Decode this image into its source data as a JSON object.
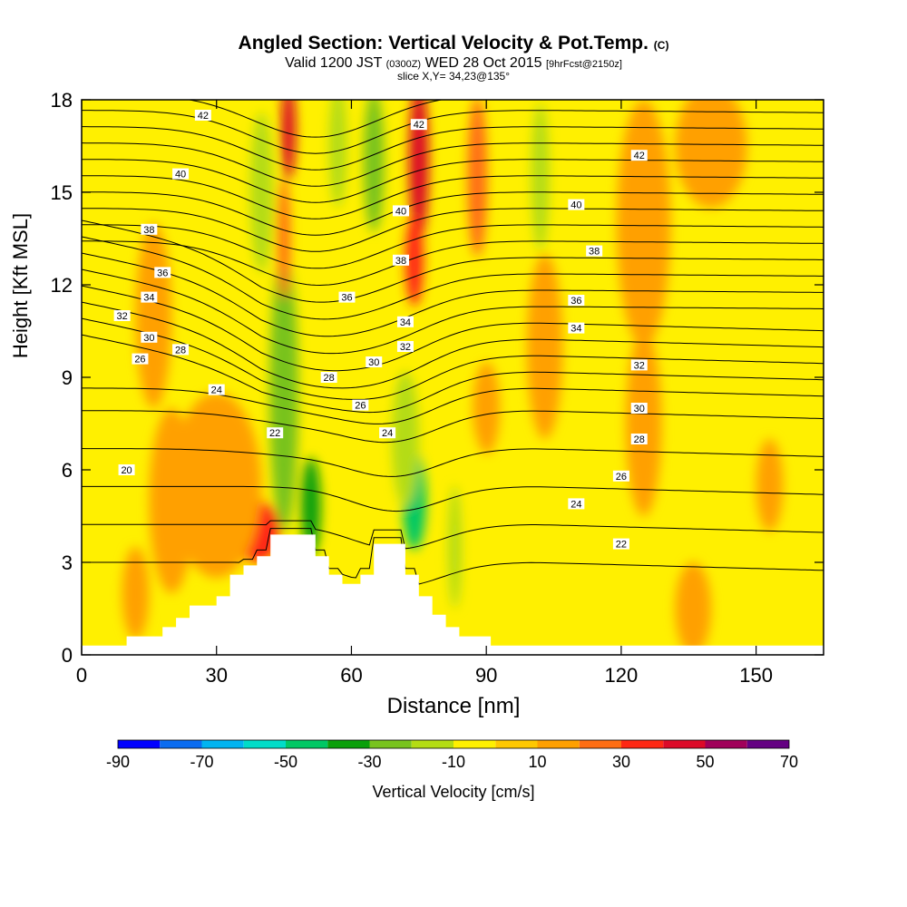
{
  "header": {
    "title_main": "Angled Section: Vertical Velocity & Pot.Temp.",
    "title_unit": "(C)",
    "valid_prefix": "Valid 1200 JST",
    "valid_utc": "(0300Z)",
    "valid_date": "WED 28 Oct 2015",
    "forecast": "[9hrFcst@2150z]",
    "slice": "slice X,Y= 34,23@135°"
  },
  "chart_data": {
    "type": "heatmap",
    "xlabel": "Distance [nm]",
    "ylabel": "Height [Kft MSL]",
    "xlim": [
      0,
      165
    ],
    "ylim": [
      0,
      18
    ],
    "x_ticks": [
      0,
      30,
      60,
      90,
      120,
      150
    ],
    "y_ticks": [
      0,
      3,
      6,
      9,
      12,
      15,
      18
    ],
    "colorbar": {
      "label": "Vertical Velocity [cm/s]",
      "tick_labels": [
        "-90",
        "-70",
        "-50",
        "-30",
        "-10",
        "10",
        "30",
        "50",
        "70"
      ],
      "colors": [
        "#0000ff",
        "#0a6cf0",
        "#00b4f0",
        "#00dcc8",
        "#00c864",
        "#0aa00a",
        "#78c31e",
        "#b4dc14",
        "#fff000",
        "#ffc800",
        "#ffa000",
        "#ff6e14",
        "#ff2814",
        "#dc0a28",
        "#a0005a",
        "#640082"
      ]
    },
    "terrain": [
      [
        0,
        0.3
      ],
      [
        10,
        0.3
      ],
      [
        10,
        0.6
      ],
      [
        18,
        0.6
      ],
      [
        18,
        0.9
      ],
      [
        21,
        0.9
      ],
      [
        21,
        1.2
      ],
      [
        24,
        1.2
      ],
      [
        24,
        1.6
      ],
      [
        30,
        1.6
      ],
      [
        30,
        1.9
      ],
      [
        33,
        1.9
      ],
      [
        33,
        2.6
      ],
      [
        36,
        2.6
      ],
      [
        36,
        2.9
      ],
      [
        39,
        2.9
      ],
      [
        39,
        3.2
      ],
      [
        42,
        3.2
      ],
      [
        42,
        3.9
      ],
      [
        52,
        3.9
      ],
      [
        52,
        3.2
      ],
      [
        55,
        3.2
      ],
      [
        55,
        2.6
      ],
      [
        58,
        2.6
      ],
      [
        58,
        2.3
      ],
      [
        62,
        2.3
      ],
      [
        62,
        2.6
      ],
      [
        65,
        2.6
      ],
      [
        65,
        3.6
      ],
      [
        72,
        3.6
      ],
      [
        72,
        2.6
      ],
      [
        75,
        2.6
      ],
      [
        75,
        1.9
      ],
      [
        78,
        1.9
      ],
      [
        78,
        1.3
      ],
      [
        81,
        1.3
      ],
      [
        81,
        0.9
      ],
      [
        84,
        0.9
      ],
      [
        84,
        0.6
      ],
      [
        91,
        0.6
      ],
      [
        91,
        0.3
      ],
      [
        165,
        0.3
      ]
    ],
    "velocity_blobs": [
      {
        "x": 45,
        "y": 8.5,
        "rx": 3.2,
        "ry": 4.5,
        "value": -25
      },
      {
        "x": 51,
        "y": 4.8,
        "rx": 2.2,
        "ry": 1.6,
        "value": -40
      },
      {
        "x": 74,
        "y": 5.0,
        "rx": 2.6,
        "ry": 1.6,
        "value": -45
      },
      {
        "x": 72,
        "y": 7.0,
        "rx": 3.0,
        "ry": 2.2,
        "value": -20
      },
      {
        "x": 65,
        "y": 16.0,
        "rx": 2.3,
        "ry": 2.3,
        "value": -25
      },
      {
        "x": 40,
        "y": 15.0,
        "rx": 2.5,
        "ry": 2.6,
        "value": -15
      },
      {
        "x": 57,
        "y": 16.5,
        "rx": 2.0,
        "ry": 2.0,
        "value": -15
      },
      {
        "x": 102,
        "y": 15.5,
        "rx": 2.0,
        "ry": 2.4,
        "value": -12
      },
      {
        "x": 88,
        "y": 5.0,
        "rx": 1.8,
        "ry": 2.5,
        "value": -10
      },
      {
        "x": 99,
        "y": 4.5,
        "rx": 1.8,
        "ry": 2.0,
        "value": -8
      },
      {
        "x": 83,
        "y": 3.5,
        "rx": 1.5,
        "ry": 2.0,
        "value": -12
      },
      {
        "x": 75,
        "y": 16.0,
        "rx": 2.2,
        "ry": 2.6,
        "value": 40
      },
      {
        "x": 74,
        "y": 12.8,
        "rx": 2.0,
        "ry": 1.5,
        "value": 30
      },
      {
        "x": 46,
        "y": 17.0,
        "rx": 1.6,
        "ry": 1.6,
        "value": 40
      },
      {
        "x": 45,
        "y": 13.5,
        "rx": 1.4,
        "ry": 2.0,
        "value": 25
      },
      {
        "x": 39,
        "y": 4.0,
        "rx": 5.0,
        "ry": 1.0,
        "value": 30
      },
      {
        "x": 88,
        "y": 15.5,
        "rx": 2.2,
        "ry": 2.6,
        "value": 22
      },
      {
        "x": 30,
        "y": 5.5,
        "rx": 10.0,
        "ry": 3.0,
        "value": 15
      },
      {
        "x": 16,
        "y": 11.0,
        "rx": 4.0,
        "ry": 3.0,
        "value": 12
      },
      {
        "x": 20,
        "y": 5.0,
        "rx": 5.0,
        "ry": 3.0,
        "value": 12
      },
      {
        "x": 125,
        "y": 14.0,
        "rx": 6.0,
        "ry": 4.0,
        "value": 12
      },
      {
        "x": 140,
        "y": 16.5,
        "rx": 8.0,
        "ry": 2.0,
        "value": 12
      },
      {
        "x": 103,
        "y": 10.0,
        "rx": 4.0,
        "ry": 3.0,
        "value": 12
      },
      {
        "x": 125,
        "y": 7.5,
        "rx": 4.0,
        "ry": 3.0,
        "value": 12
      },
      {
        "x": 153,
        "y": 5.5,
        "rx": 3.0,
        "ry": 1.5,
        "value": 12
      },
      {
        "x": 136,
        "y": 1.5,
        "rx": 4.0,
        "ry": 1.5,
        "value": 12
      },
      {
        "x": 12,
        "y": 2.0,
        "rx": 3.0,
        "ry": 1.5,
        "value": 12
      },
      {
        "x": 90,
        "y": 8.0,
        "rx": 3.0,
        "ry": 1.5,
        "value": 12
      }
    ],
    "theta_contours": [
      20,
      22,
      24,
      26,
      28,
      30,
      32,
      34,
      36,
      38,
      40,
      42
    ],
    "contour_labels": [
      {
        "x": 27,
        "y": 17.5,
        "text": "42"
      },
      {
        "x": 75,
        "y": 17.2,
        "text": "42"
      },
      {
        "x": 124,
        "y": 16.2,
        "text": "42"
      },
      {
        "x": 22,
        "y": 15.6,
        "text": "40"
      },
      {
        "x": 71,
        "y": 14.4,
        "text": "40"
      },
      {
        "x": 110,
        "y": 14.6,
        "text": "40"
      },
      {
        "x": 15,
        "y": 13.8,
        "text": "38"
      },
      {
        "x": 71,
        "y": 12.8,
        "text": "38"
      },
      {
        "x": 114,
        "y": 13.1,
        "text": "38"
      },
      {
        "x": 18,
        "y": 12.4,
        "text": "36"
      },
      {
        "x": 59,
        "y": 11.6,
        "text": "36"
      },
      {
        "x": 110,
        "y": 11.5,
        "text": "36"
      },
      {
        "x": 15,
        "y": 11.6,
        "text": "34"
      },
      {
        "x": 72,
        "y": 10.8,
        "text": "34"
      },
      {
        "x": 110,
        "y": 10.6,
        "text": "34"
      },
      {
        "x": 9,
        "y": 11.0,
        "text": "32"
      },
      {
        "x": 72,
        "y": 10.0,
        "text": "32"
      },
      {
        "x": 124,
        "y": 9.4,
        "text": "32"
      },
      {
        "x": 15,
        "y": 10.3,
        "text": "30"
      },
      {
        "x": 65,
        "y": 9.5,
        "text": "30"
      },
      {
        "x": 124,
        "y": 8.0,
        "text": "30"
      },
      {
        "x": 22,
        "y": 9.9,
        "text": "28"
      },
      {
        "x": 55,
        "y": 9.0,
        "text": "28"
      },
      {
        "x": 124,
        "y": 7.0,
        "text": "28"
      },
      {
        "x": 13,
        "y": 9.6,
        "text": "26"
      },
      {
        "x": 62,
        "y": 8.1,
        "text": "26"
      },
      {
        "x": 120,
        "y": 5.8,
        "text": "26"
      },
      {
        "x": 30,
        "y": 8.6,
        "text": "24"
      },
      {
        "x": 68,
        "y": 7.2,
        "text": "24"
      },
      {
        "x": 110,
        "y": 4.9,
        "text": "24"
      },
      {
        "x": 43,
        "y": 7.2,
        "text": "22"
      },
      {
        "x": 120,
        "y": 3.6,
        "text": "22"
      },
      {
        "x": 10,
        "y": 6.0,
        "text": "20"
      }
    ]
  }
}
